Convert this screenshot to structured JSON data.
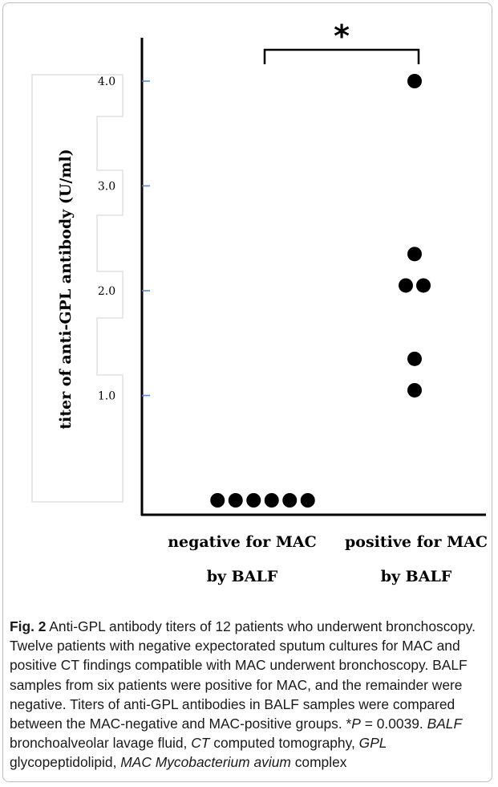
{
  "chart_data": {
    "type": "scatter",
    "ylabel": "titer of anti-GPL antibody (U/ml)",
    "categories": [
      "negative for MAC by BALF",
      "positive for MAC by BALF"
    ],
    "category_lines": [
      [
        "negative for MAC",
        "by BALF"
      ],
      [
        "positive for MAC",
        "by BALF"
      ]
    ],
    "yticks": [
      1.0,
      2.0,
      3.0,
      4.0
    ],
    "ytick_labels": [
      "1.0",
      "2.0",
      "3.0",
      "4.0"
    ],
    "ylim": [
      0.0,
      4.5
    ],
    "grid": false,
    "series": [
      {
        "category": "negative for MAC by BALF",
        "values": [
          0.0,
          0.0,
          0.0,
          0.0,
          0.0,
          0.0
        ]
      },
      {
        "category": "positive for MAC by BALF",
        "values": [
          4.0,
          2.35,
          2.05,
          2.05,
          1.35,
          1.05
        ]
      }
    ],
    "annotations": {
      "significance": "*"
    }
  },
  "caption": {
    "fig_label": "Fig. 2",
    "segments": [
      {
        "text": " Anti-GPL antibody titers of 12 patients who underwent bronchoscopy. Twelve patients with negative expectorated sputum cultures for MAC and positive CT findings compatible with MAC underwent bronchoscopy. BALF samples from six patients were positive for MAC, and the remainder were negative. Titers of anti-GPL antibodies in BALF samples were compared between the MAC-negative and MAC-positive groups. *",
        "italic": false
      },
      {
        "text": "P",
        "italic": true
      },
      {
        "text": " = 0.0039. ",
        "italic": false
      },
      {
        "text": "BALF",
        "italic": true
      },
      {
        "text": " bronchoalveolar lavage fluid, ",
        "italic": false
      },
      {
        "text": "CT",
        "italic": true
      },
      {
        "text": " computed tomography, ",
        "italic": false
      },
      {
        "text": "GPL",
        "italic": true
      },
      {
        "text": " glycopeptidolipid, ",
        "italic": false
      },
      {
        "text": "MAC Mycobacterium avium",
        "italic": true
      },
      {
        "text": " complex",
        "italic": false
      }
    ]
  }
}
